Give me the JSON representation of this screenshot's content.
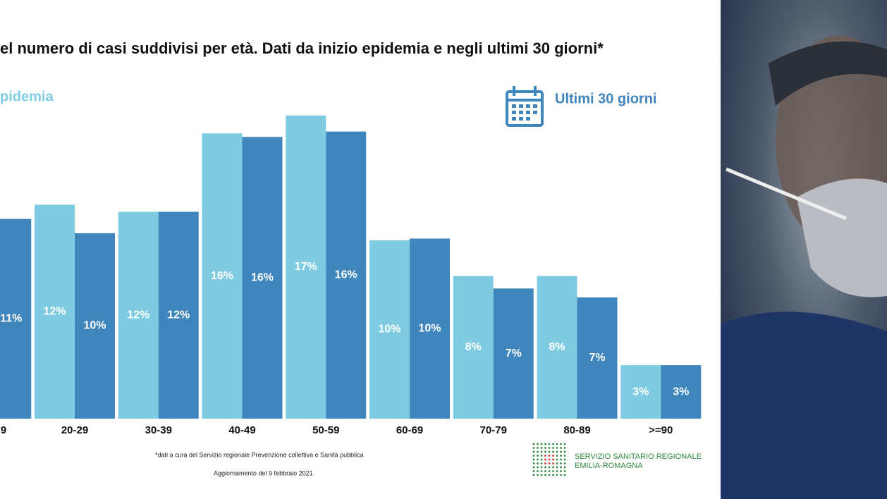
{
  "chart_data": {
    "type": "bar",
    "title": "el numero di casi suddivisi per età. Dati da inizio epidemia e negli ultimi 30 giorni*",
    "categories": [
      "9",
      "20-29",
      "30-39",
      "40-49",
      "50-59",
      "60-69",
      "70-79",
      "80-89",
      ">=90"
    ],
    "series": [
      {
        "name": "pidemia",
        "color": "#7ecbe2",
        "values": [
          null,
          12.0,
          11.6,
          16.0,
          17.0,
          10.0,
          8.0,
          8.0,
          3.0
        ],
        "value_labels": [
          null,
          "12%",
          "12%",
          "16%",
          "17%",
          "10%",
          "8%",
          "8%",
          "3%"
        ]
      },
      {
        "name": "Ultimi 30 giorni",
        "color": "#3f86bd",
        "values": [
          11.2,
          10.4,
          11.6,
          15.8,
          16.1,
          10.1,
          7.3,
          6.8,
          3.0
        ],
        "value_labels": [
          "11%",
          "10%",
          "12%",
          "16%",
          "16%",
          "10%",
          "7%",
          "7%",
          "3%"
        ]
      }
    ],
    "footnote": "*dati a cura del Servizio regionale Prevenzione collettiva e Sanità pubblica",
    "update": "Aggiornamento del 9 febbraio 2021",
    "logo": {
      "line1": "SERVIZIO SANITARIO REGIONALE",
      "line2": "EMILIA-ROMAGNA"
    }
  }
}
